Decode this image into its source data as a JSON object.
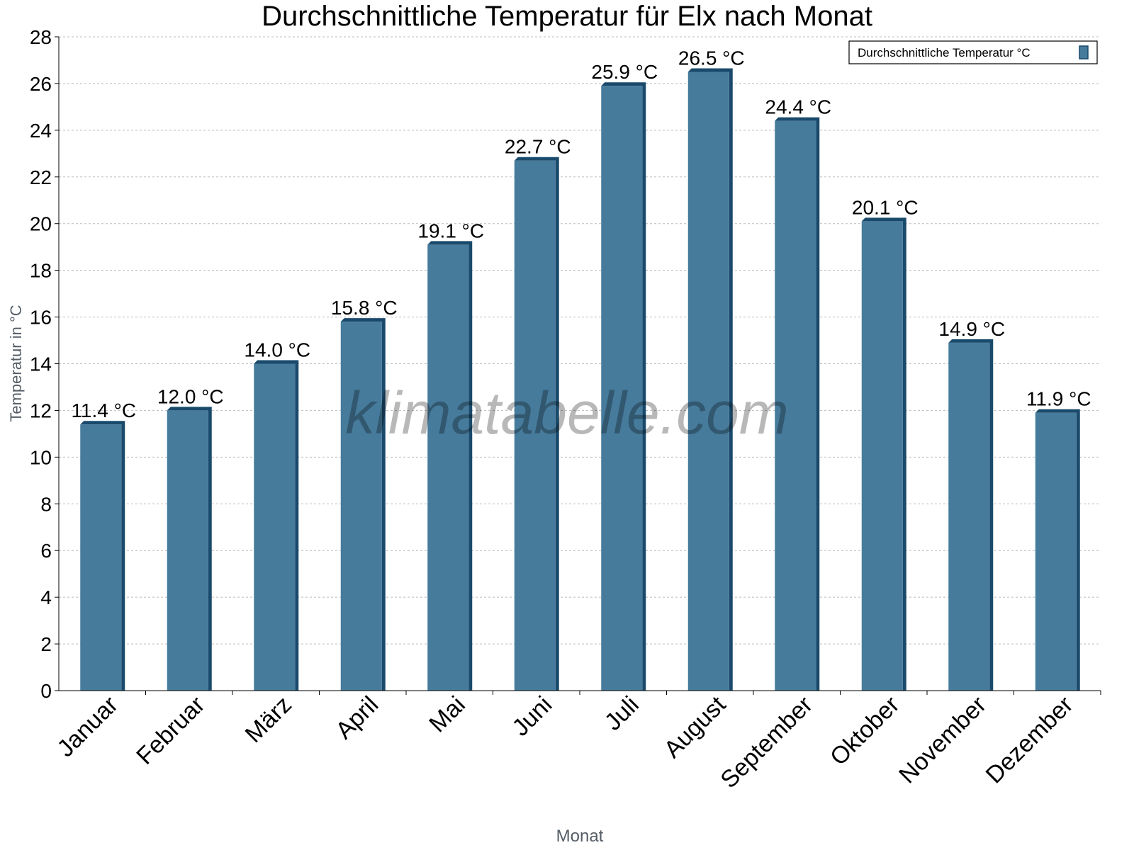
{
  "chart_data": {
    "type": "bar",
    "title": "Durchschnittliche Temperatur für Elx nach Monat",
    "xlabel": "Monat",
    "ylabel": "Temperatur in °C",
    "categories": [
      "Januar",
      "Februar",
      "März",
      "April",
      "Mai",
      "Juni",
      "Juli",
      "August",
      "September",
      "Oktober",
      "November",
      "Dezember"
    ],
    "series": [
      {
        "name": "Durchschnittliche Temperatur °C",
        "values": [
          11.4,
          12.0,
          14.0,
          15.8,
          19.1,
          22.7,
          25.9,
          26.5,
          24.4,
          20.1,
          14.9,
          11.9
        ],
        "color": "#467b9c",
        "side_color": "#1a4a6b"
      }
    ],
    "data_labels": [
      "11.4 °C",
      "12.0 °C",
      "14.0 °C",
      "15.8 °C",
      "19.1 °C",
      "22.7 °C",
      "25.9 °C",
      "26.5 °C",
      "24.4 °C",
      "20.1 °C",
      "14.9 °C",
      "11.9 °C"
    ],
    "ylim": [
      0,
      28
    ],
    "yticks": [
      0,
      2,
      4,
      6,
      8,
      10,
      12,
      14,
      16,
      18,
      20,
      22,
      24,
      26,
      28
    ],
    "grid": true,
    "legend_position": "top-right",
    "watermark": "klimatabelle.com"
  }
}
